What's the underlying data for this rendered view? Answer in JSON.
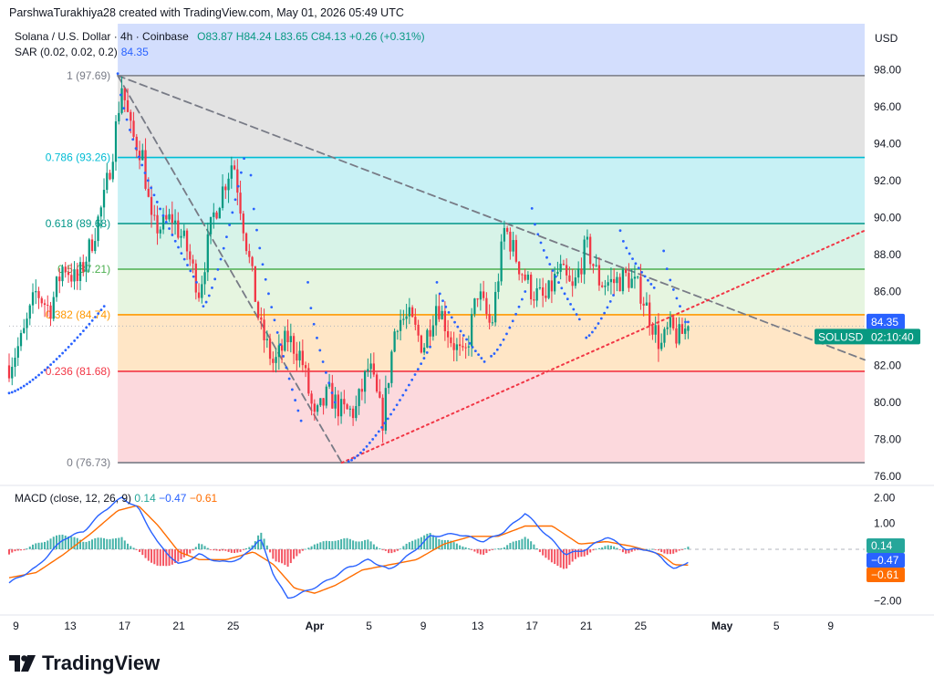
{
  "header": {
    "credit": "ParshwaTurakhiya28 created with TradingView.com, May 01, 2026 05:49 UTC"
  },
  "legend": {
    "symbol": "Solana / U.S. Dollar · 4h · Coinbase",
    "ohlc": "O83.87 H84.24 L83.65 C84.13 +0.26 (+0.31%)",
    "sar_label": "SAR (0.02, 0.02, 0.2)",
    "sar_value": "84.35"
  },
  "macd_legend": {
    "label": "MACD (close, 12, 26, 9)",
    "hist": "0.14",
    "macd": "−0.47",
    "signal": "−0.61"
  },
  "axis": {
    "currency": "USD"
  },
  "brand": {
    "name": "TradingView",
    "logo": "tradingview-logo-icon"
  },
  "colors": {
    "up": "#089981",
    "down": "#f23645",
    "sar": "#2962ff",
    "macd": "#2962ff",
    "signal": "#ff6d00"
  },
  "chart_data": [
    {
      "type": "candlestick",
      "title": "Solana / U.S. Dollar · 4h · Coinbase",
      "ylim": [
        75.5,
        100.5
      ],
      "yticks": [
        76,
        78,
        80,
        82,
        84,
        86,
        88,
        90,
        92,
        94,
        96,
        98
      ],
      "ytick_labels": [
        "76.00",
        "78.00",
        "80.00",
        "82.00",
        "84.00",
        "86.00",
        "88.00",
        "90.00",
        "92.00",
        "94.00",
        "96.00",
        "98.00"
      ],
      "xticks": [
        {
          "label": "9",
          "x": 0.5
        },
        {
          "label": "13",
          "x": 4.5
        },
        {
          "label": "17",
          "x": 8.5
        },
        {
          "label": "21",
          "x": 12.5
        },
        {
          "label": "25",
          "x": 16.5
        },
        {
          "label": "Apr",
          "x": 22.5
        },
        {
          "label": "5",
          "x": 26.5
        },
        {
          "label": "9",
          "x": 30.5
        },
        {
          "label": "13",
          "x": 34.5
        },
        {
          "label": "17",
          "x": 38.5
        },
        {
          "label": "21",
          "x": 42.5
        },
        {
          "label": "25",
          "x": 46.5
        },
        {
          "label": "May",
          "x": 52.5
        },
        {
          "label": "5",
          "x": 56.5
        },
        {
          "label": "9",
          "x": 60.5
        }
      ],
      "xlim": [
        0,
        63
      ],
      "last_price_label": "84.35",
      "symbol_badge": "SOLUSD",
      "countdown": "02:10:40",
      "fib_levels": [
        {
          "label": "1 (97.69)",
          "value": 97.69,
          "fill": "#ffffff",
          "line": "#787b86"
        },
        {
          "label": "0.786 (93.26)",
          "value": 93.26,
          "fill": "#e3e3e3",
          "line": "#00bcd4"
        },
        {
          "label": "0.618 (89.68)",
          "value": 89.68,
          "fill": "#c8f1f5",
          "line": "#009688"
        },
        {
          "label": "0.5 (87.21)",
          "value": 87.21,
          "fill": "#d7f3e8",
          "line": "#4caf50"
        },
        {
          "label": "0.382 (84.74)",
          "value": 84.74,
          "fill": "#e6f5e0",
          "line": "#ff9800"
        },
        {
          "label": "0.236 (81.68)",
          "value": 81.68,
          "fill": "#ffe6c6",
          "line": "#f23645"
        },
        {
          "label": "0 (76.73)",
          "value": 76.73,
          "fill": "#fcd9dd",
          "line": "#787b86"
        }
      ],
      "fib_top_fill": "#d3defd",
      "fib_top_value": 100.5,
      "fib_x_start": 8.0,
      "candle_anchors": {
        "x": [
          0,
          1,
          2,
          3,
          4,
          5,
          6,
          7,
          7.6,
          8.3,
          9,
          9.8,
          10.5,
          11.2,
          12,
          13,
          14,
          15,
          16.5,
          17.5,
          18.5,
          19.5,
          20.5,
          21.5,
          22.5,
          23.5,
          24.5,
          25.5,
          26.5,
          27.5,
          28.5,
          29.5,
          30.5,
          31.5,
          32.5,
          33.5,
          34.5,
          35.5,
          36.5,
          37.5,
          38.5,
          39.5,
          40.5,
          41.5,
          42.5,
          43.5,
          44.5,
          45.5,
          46.5,
          47.5,
          48,
          48.6,
          49.3,
          50
        ],
        "close": [
          82,
          83.5,
          86,
          85,
          87.5,
          86.5,
          88.5,
          91,
          93.5,
          97.2,
          94.5,
          93.5,
          89.5,
          89.5,
          90,
          88.5,
          86,
          90,
          93.2,
          88.5,
          84,
          82,
          83.5,
          82.5,
          79,
          80.5,
          79.5,
          79.5,
          82,
          79,
          84.5,
          84.5,
          83,
          85.5,
          83.5,
          82.2,
          86,
          84,
          89.5,
          87.5,
          86,
          85.5,
          87.2,
          86,
          88.5,
          86.5,
          86.5,
          86.8,
          86,
          84,
          83,
          84,
          83.5,
          84.13
        ]
      },
      "sar": [
        {
          "x0": 0,
          "x1": 7,
          "from": 80.5,
          "to": 85.2
        },
        {
          "x0": 8,
          "x1": 13.8,
          "from": 97.8,
          "to": 86.5
        },
        {
          "x0": 14.3,
          "x1": 17.3,
          "from": 85.2,
          "to": 93.2
        },
        {
          "x0": 17.8,
          "x1": 21.5,
          "from": 92.3,
          "to": 79.0
        },
        {
          "x0": 22,
          "x1": 24,
          "from": 86.5,
          "to": 80.0
        },
        {
          "x0": 25,
          "x1": 31,
          "from": 76.8,
          "to": 83.0
        },
        {
          "x0": 31.5,
          "x1": 35,
          "from": 86.5,
          "to": 82.2
        },
        {
          "x0": 35.5,
          "x1": 38,
          "from": 82.5,
          "to": 86.0
        },
        {
          "x0": 38.5,
          "x1": 42,
          "from": 90.5,
          "to": 84.5
        },
        {
          "x0": 42.5,
          "x1": 44.5,
          "from": 83.5,
          "to": 85.8
        },
        {
          "x0": 45,
          "x1": 47.5,
          "from": 89.3,
          "to": 86.2
        },
        {
          "x0": 48.2,
          "x1": 49.4,
          "from": 88.2,
          "to": 85.2
        },
        {
          "x0": 49.8,
          "x1": 50,
          "from": 84.35,
          "to": 84.35
        }
      ],
      "trendlines": [
        {
          "style": "dashed",
          "color": "#787b86",
          "x0": 8,
          "y0": 97.69,
          "x1": 63,
          "y1": 82.3
        },
        {
          "style": "dashed",
          "color": "#787b86",
          "x0": 8,
          "y0": 97.69,
          "x1": 24.5,
          "y1": 76.73
        },
        {
          "style": "dotted",
          "color": "#f23645",
          "x0": 24.5,
          "y0": 76.73,
          "x1": 63,
          "y1": 89.3
        }
      ]
    },
    {
      "type": "macd",
      "title": "MACD (close, 12, 26, 9)",
      "ylim": [
        -2.4,
        2.4
      ],
      "yticks": [
        -2,
        1,
        2
      ],
      "ytick_labels": [
        "−2.00",
        "1.00",
        "2.00"
      ],
      "last_labels": {
        "hist": "0.14",
        "macd": "−0.47",
        "signal": "−0.61"
      },
      "macd_anchors": {
        "x": [
          0,
          2,
          4,
          5.5,
          7,
          8.3,
          9.5,
          11,
          12.5,
          14,
          15.5,
          17,
          18.5,
          19.5,
          20.5,
          22,
          23.5,
          25,
          26.5,
          28,
          29.5,
          31,
          33,
          35,
          36.5,
          38,
          39.5,
          41,
          42.5,
          44,
          45.5,
          47,
          48,
          49,
          50
        ],
        "v": [
          -1.3,
          -0.7,
          0.4,
          0.7,
          1.5,
          2.0,
          1.6,
          0.2,
          -0.6,
          -0.2,
          -0.5,
          -0.4,
          0.4,
          -1.0,
          -1.9,
          -1.6,
          -1.2,
          -0.7,
          -0.4,
          -0.8,
          -0.2,
          0.5,
          0.6,
          0.3,
          0.7,
          1.4,
          0.6,
          -0.2,
          0.0,
          0.5,
          0.0,
          0.0,
          -0.3,
          -0.8,
          -0.47
        ]
      },
      "signal_anchors": {
        "x": [
          0,
          2,
          4,
          6,
          8,
          9.5,
          11,
          12.5,
          14,
          16,
          18,
          19.5,
          21,
          22.5,
          24,
          26,
          28,
          30,
          32,
          34,
          36,
          38,
          40,
          42,
          44,
          46,
          48,
          49,
          50
        ],
        "v": [
          -1.1,
          -0.9,
          -0.2,
          0.6,
          1.5,
          1.7,
          0.9,
          -0.1,
          -0.4,
          -0.4,
          -0.1,
          -0.6,
          -1.5,
          -1.7,
          -1.4,
          -0.8,
          -0.6,
          -0.4,
          0.2,
          0.5,
          0.5,
          0.9,
          0.9,
          0.2,
          0.3,
          0.1,
          -0.2,
          -0.6,
          -0.61
        ]
      }
    }
  ]
}
